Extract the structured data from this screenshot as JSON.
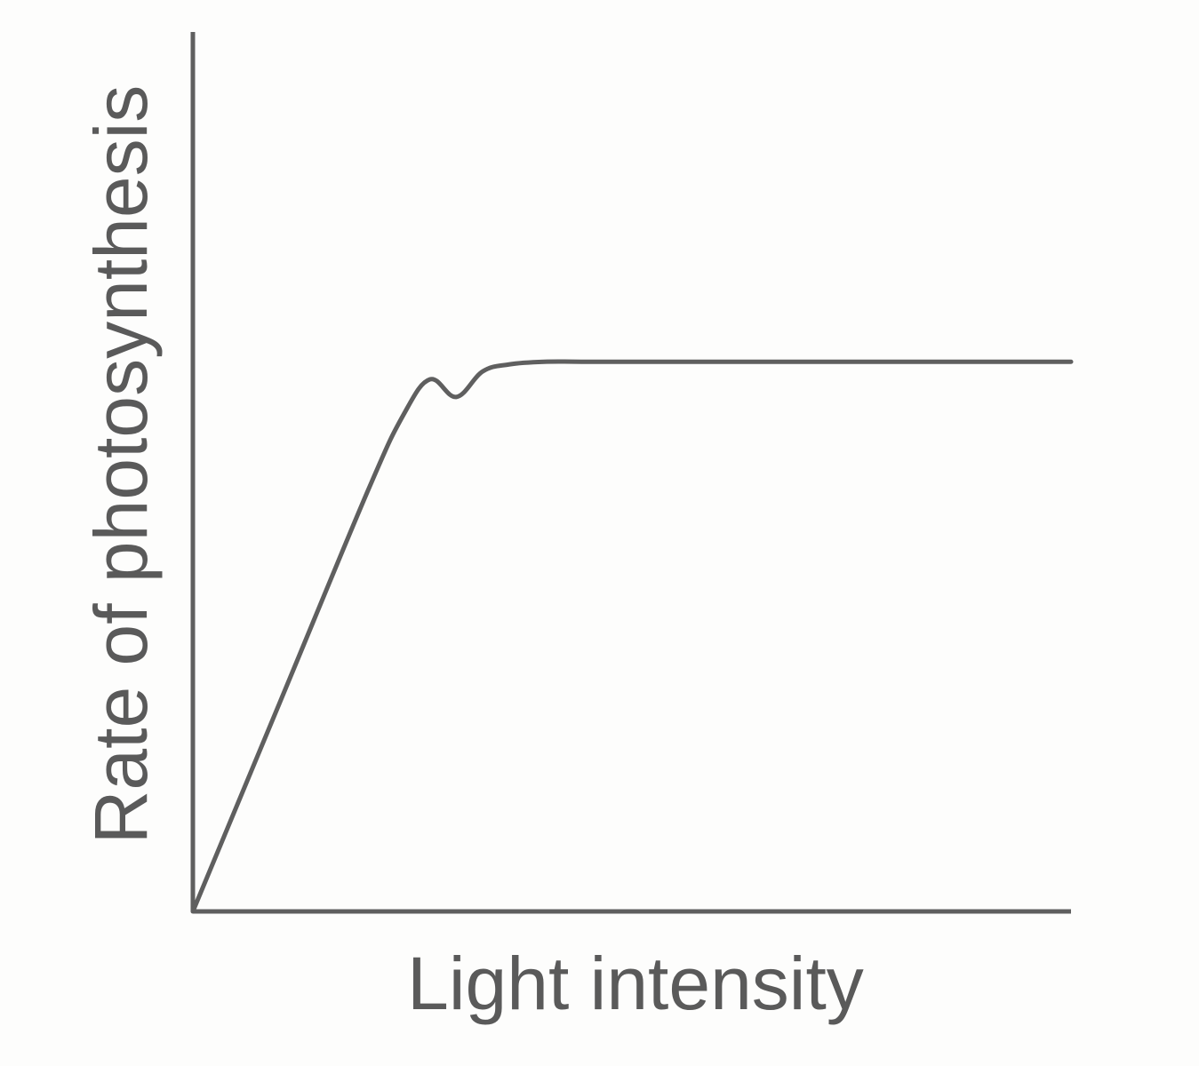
{
  "chart_data": {
    "type": "line",
    "title": "",
    "xlabel": "Light intensity",
    "ylabel": "Rate of photosynthesis",
    "xlim": [
      0,
      100
    ],
    "ylim": [
      0,
      100
    ],
    "grid": false,
    "legend": "none",
    "axis_color": "#5f5f5f",
    "line_color": "#5f5f5f",
    "text_color": "#5a5a5a",
    "series": [
      {
        "x": [
          0,
          10,
          20,
          24,
          27,
          30,
          33,
          36,
          40,
          45,
          50,
          60,
          70,
          80,
          90,
          100
        ],
        "values": [
          0,
          24,
          48,
          56.5,
          60.5,
          58.5,
          61.4,
          62.2,
          62.5,
          62.5,
          62.5,
          62.5,
          62.5,
          62.5,
          62.5,
          62.5
        ]
      }
    ]
  }
}
